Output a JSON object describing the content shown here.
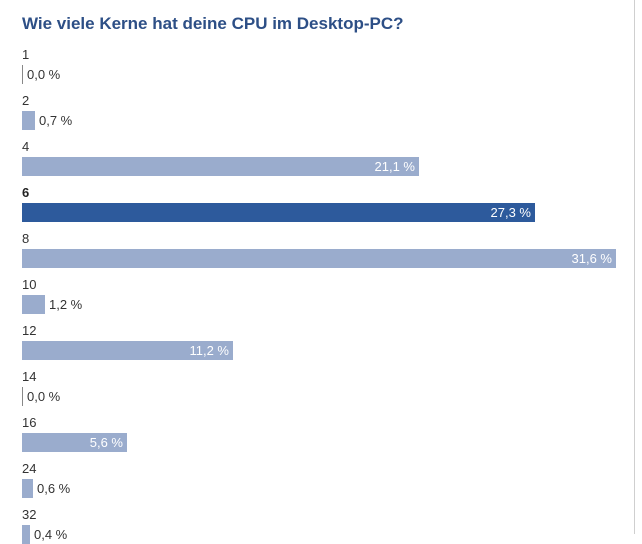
{
  "chart_data": {
    "type": "bar",
    "orientation": "horizontal",
    "title": "Wie viele Kerne hat deine CPU im Desktop-PC?",
    "categories": [
      "1",
      "2",
      "4",
      "6",
      "8",
      "10",
      "12",
      "14",
      "16",
      "24",
      "32"
    ],
    "values": [
      0.0,
      0.7,
      21.1,
      27.3,
      31.6,
      1.2,
      11.2,
      0.0,
      5.6,
      0.6,
      0.4
    ],
    "value_labels": [
      "0,0 %",
      "0,7 %",
      "21,1 %",
      "27,3 %",
      "31,6 %",
      "1,2 %",
      "11,2 %",
      "0,0 %",
      "5,6 %",
      "0,6 %",
      "0,4 %"
    ],
    "highlighted_category": "6",
    "xlim": [
      0,
      31.6
    ],
    "grid": false,
    "colors": {
      "bar": "#9aaccd",
      "highlight": "#2d5a9c",
      "title": "#2d4f86"
    }
  }
}
